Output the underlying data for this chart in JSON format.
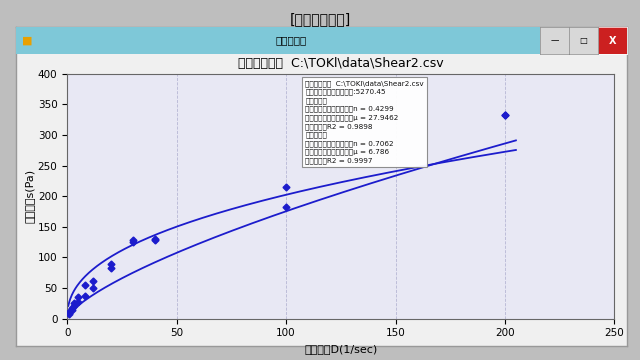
{
  "title_outer": "[文件播放画面]",
  "window_title": "再生グラフ",
  "chart_title": "ファイル名：  C:\\TOKl\\data\\Shear2.csv",
  "xlabel": "ずり速度D(1/sec)",
  "ylabel": "ずり応力s(Pa)",
  "xlim": [
    0,
    250
  ],
  "ylim": [
    0,
    400
  ],
  "xticks": [
    0,
    50,
    100,
    150,
    200,
    250
  ],
  "yticks": [
    0,
    50,
    100,
    150,
    200,
    250,
    300,
    350,
    400
  ],
  "up_data_x": [
    1,
    2,
    3,
    5,
    8,
    12,
    20,
    30,
    40,
    100,
    200
  ],
  "up_data_y": [
    10,
    18,
    25,
    35,
    55,
    62,
    90,
    128,
    130,
    215,
    333
  ],
  "down_data_x": [
    200,
    100,
    40,
    30,
    20,
    12,
    8,
    5,
    3,
    2,
    1
  ],
  "down_data_y": [
    333,
    183,
    128,
    125,
    83,
    50,
    37,
    27,
    20,
    14,
    7
  ],
  "up_fit_n": 0.4299,
  "up_fit_mu": 27.9462,
  "down_fit_n": 0.7062,
  "down_fit_mu": 6.786,
  "line_color": "#1C1CCC",
  "window_bar_color": "#7EC8D8",
  "outer_bg": "#BEBEBE",
  "window_bg": "#F0F0F0",
  "plot_bg": "#E8E8F4",
  "annotation_text": "ファイル名：  C:\\TOKl\\data\\Shear2.csv\nヒステリシスループ面積:5270.45\n【アップ】\n非ニュートン粘性指数：n = 0.4299\n非ニュートン粘性係数：μ = 27.9462\n相関係数：R2 = 0.9898\n【ダウン】\n非ニュートン粘性指数：n = 0.7062\n非ニュートン粘性係数：μ = 6.786\n相関係数：R2 = 0.9997"
}
